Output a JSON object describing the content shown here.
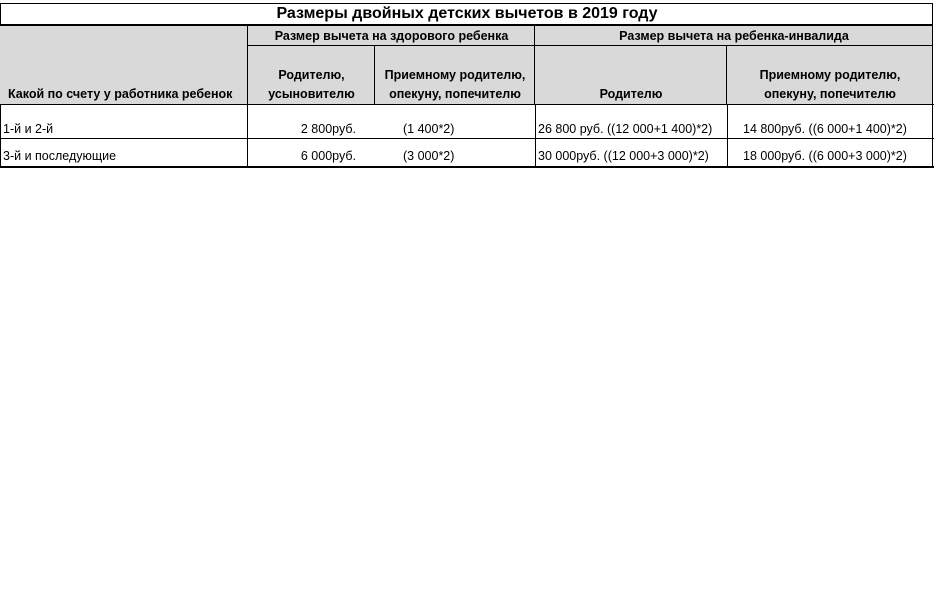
{
  "title": "Размеры двойных детских вычетов в 2019 году",
  "header": {
    "row_label": "Какой по счету у работника ребенок",
    "healthy_group": "Размер вычета на здорового ребенка",
    "disabled_group": "Размер вычета на ребенка-инвалида",
    "healthy_parent": [
      "Родителю,",
      "усыновителю"
    ],
    "healthy_foster": [
      "Приемному родителю,",
      "опекуну, попечителю"
    ],
    "disabled_parent": "Родителю",
    "disabled_foster": [
      "Приемному родителю,",
      "опекуну, попечителю"
    ]
  },
  "rows": [
    {
      "label": "1-й и 2-й",
      "healthy_amount": "2 800руб.",
      "healthy_formula": "(1 400*2)",
      "disabled_parent": "26 800 руб.  ((12 000+1 400)*2)",
      "disabled_foster": "14 800руб.  ((6 000+1 400)*2)"
    },
    {
      "label": "3-й и последующие",
      "healthy_amount": "6 000руб.",
      "healthy_formula": "(3 000*2)",
      "disabled_parent": "30 000руб.   ((12 000+3 000)*2)",
      "disabled_foster": "18 000руб.  ((6 000+3 000)*2)"
    }
  ],
  "colors": {
    "header_bg": "#d9d9d9",
    "border": "#000000"
  }
}
